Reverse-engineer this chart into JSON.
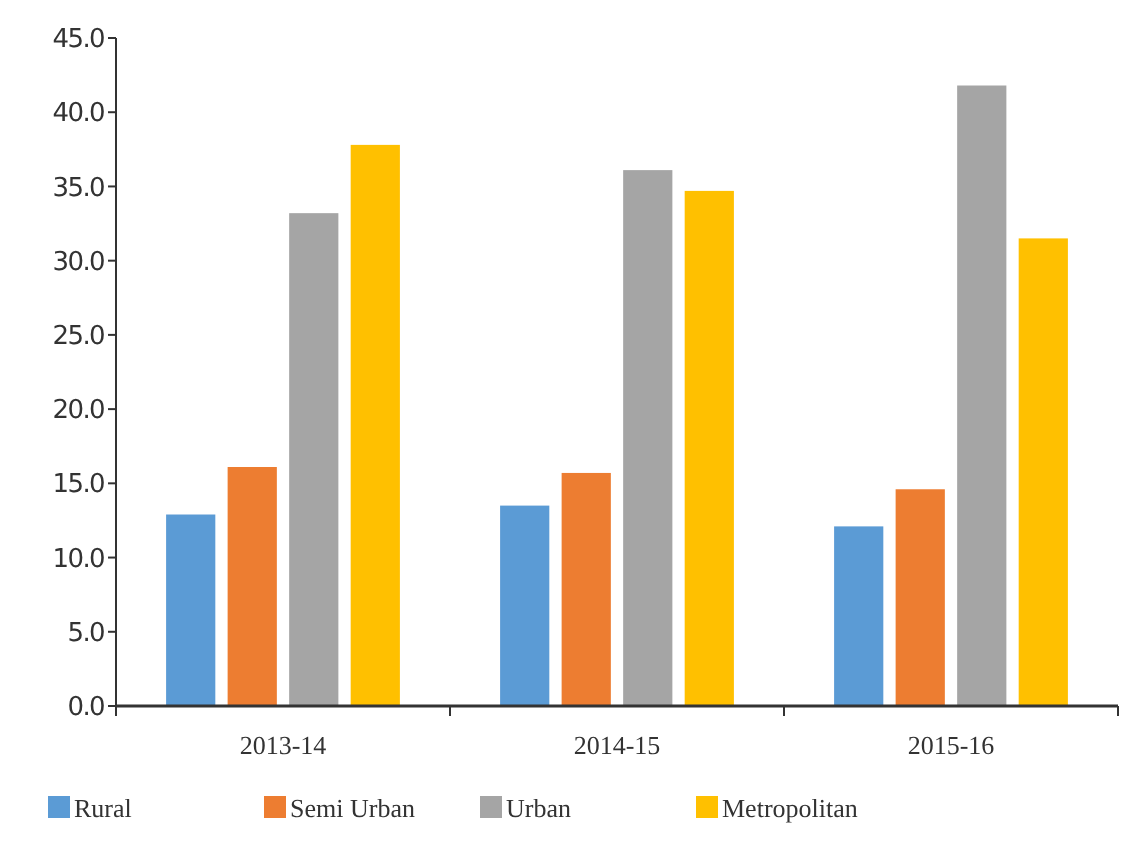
{
  "chart_data": {
    "type": "bar",
    "categories": [
      "2013-14",
      "2014-15",
      "2015-16"
    ],
    "series": [
      {
        "name": "Rural",
        "color": "#5b9bd5",
        "values": [
          12.9,
          13.5,
          12.1
        ]
      },
      {
        "name": "Semi Urban",
        "color": "#ed7d31",
        "values": [
          16.1,
          15.7,
          14.6
        ]
      },
      {
        "name": "Urban",
        "color": "#a5a5a5",
        "values": [
          33.2,
          36.1,
          41.8
        ]
      },
      {
        "name": "Metropolitan",
        "color": "#ffc000",
        "values": [
          37.8,
          34.7,
          31.5
        ]
      }
    ],
    "ylim": [
      0,
      45
    ],
    "yticks": [
      {
        "value": 0,
        "label": "0.0"
      },
      {
        "value": 5,
        "label": "5.0"
      },
      {
        "value": 10,
        "label": "10.0"
      },
      {
        "value": 15,
        "label": "15.0"
      },
      {
        "value": 20,
        "label": "20.0"
      },
      {
        "value": 25,
        "label": "25.0"
      },
      {
        "value": 30,
        "label": "30.0"
      },
      {
        "value": 35,
        "label": "35.0"
      },
      {
        "value": 40,
        "label": "40.0"
      },
      {
        "value": 45,
        "label": "45.0"
      }
    ],
    "grid": false,
    "legend": "bottom"
  }
}
